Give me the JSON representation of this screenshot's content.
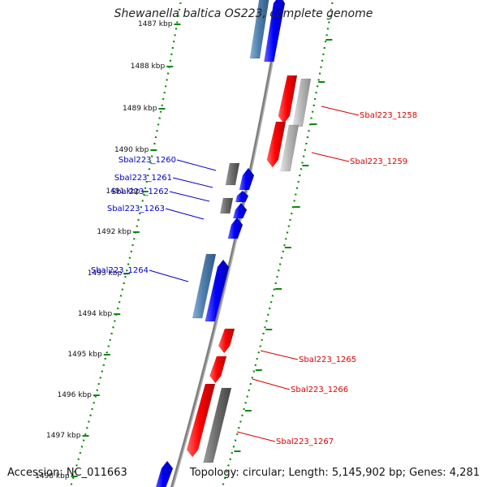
{
  "title": "Shewanella baltica OS223, complete genome",
  "accession": "Accession: NC_011663",
  "topology": "Topology: circular; Length: 5,145,902 bp; Genes: 4,281",
  "colors": {
    "plus_gene": "#0000ff",
    "plus_other": "#4f7fae",
    "minus_gene": "#ff0000",
    "minus_other": "#b8b8b8",
    "pseudo": "#6e6e6e",
    "backbone": "#808080",
    "tick": "#0a8a0a"
  },
  "ticks": [
    "1487 kbp",
    "1488 kbp",
    "1489 kbp",
    "1490 kbp",
    "1491 kbp",
    "1492 kbp",
    "1493 kbp",
    "1494 kbp",
    "1495 kbp",
    "1496 kbp",
    "1497 kbp",
    "1498 kbp"
  ],
  "gene_labels": [
    {
      "text": "Sbal223_1258",
      "strand": "minus"
    },
    {
      "text": "Sbal223_1259",
      "strand": "minus"
    },
    {
      "text": "Sbal223_1260",
      "strand": "plus"
    },
    {
      "text": "Sbal223_1261",
      "strand": "plus"
    },
    {
      "text": "Sbal223_1262",
      "strand": "plus"
    },
    {
      "text": "Sbal223_1263",
      "strand": "plus"
    },
    {
      "text": "Sbal223_1264",
      "strand": "plus"
    },
    {
      "text": "Sbal223_1265",
      "strand": "minus"
    },
    {
      "text": "Sbal223_1266",
      "strand": "minus"
    },
    {
      "text": "Sbal223_1267",
      "strand": "minus"
    }
  ]
}
